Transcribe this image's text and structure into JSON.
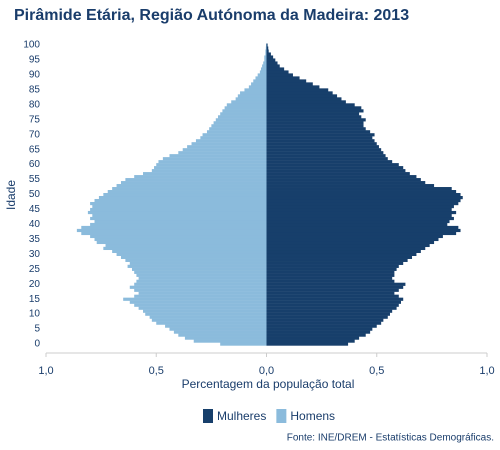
{
  "chart_data": {
    "type": "pyramid",
    "title": "Pirâmide Etária, Região Autónoma da Madeira: 2013",
    "x_label": "Percentagem da população total",
    "y_label": "Idade",
    "source": "Fonte: INE/DREM - Estatísticas Demográficas.",
    "categories": [
      0,
      null,
      null,
      null,
      null,
      5,
      null,
      null,
      null,
      null,
      10,
      null,
      null,
      null,
      null,
      15,
      null,
      null,
      null,
      null,
      20,
      null,
      null,
      null,
      null,
      25,
      null,
      null,
      null,
      null,
      30,
      null,
      null,
      null,
      null,
      35,
      null,
      null,
      null,
      null,
      40,
      null,
      null,
      null,
      null,
      45,
      null,
      null,
      null,
      null,
      50,
      null,
      null,
      null,
      null,
      55,
      null,
      null,
      null,
      null,
      60,
      null,
      null,
      null,
      null,
      65,
      null,
      null,
      null,
      null,
      70,
      null,
      null,
      null,
      null,
      75,
      null,
      null,
      null,
      null,
      80,
      null,
      null,
      null,
      null,
      85,
      null,
      null,
      null,
      null,
      90,
      null,
      null,
      null,
      null,
      95,
      null,
      null,
      null,
      null,
      100
    ],
    "xlim": [
      -1,
      1
    ],
    "xticks": [
      {
        "value": -1,
        "label": "1,0"
      },
      {
        "value": -0.5,
        "label": "0,5"
      },
      {
        "value": 0,
        "label": "0,0"
      },
      {
        "value": 0.5,
        "label": "0,5"
      },
      {
        "value": 1,
        "label": "1,0"
      }
    ],
    "series": [
      {
        "name": "Mulheres",
        "color": "#173f6b",
        "values": [
          0.37,
          0.4,
          0.42,
          0.45,
          0.47,
          0.48,
          0.5,
          0.52,
          0.53,
          0.55,
          0.56,
          0.57,
          0.59,
          0.6,
          0.61,
          0.62,
          0.6,
          0.58,
          0.6,
          0.62,
          0.63,
          0.58,
          0.57,
          0.58,
          0.58,
          0.59,
          0.6,
          0.62,
          0.64,
          0.66,
          0.68,
          0.7,
          0.72,
          0.74,
          0.76,
          0.78,
          0.8,
          0.86,
          0.88,
          0.87,
          0.82,
          0.83,
          0.85,
          0.84,
          0.86,
          0.84,
          0.85,
          0.87,
          0.88,
          0.89,
          0.88,
          0.86,
          0.84,
          0.76,
          0.72,
          0.7,
          0.68,
          0.65,
          0.63,
          0.62,
          0.6,
          0.57,
          0.55,
          0.54,
          0.53,
          0.52,
          0.51,
          0.5,
          0.49,
          0.48,
          0.49,
          0.47,
          0.45,
          0.44,
          0.44,
          0.45,
          0.43,
          0.42,
          0.44,
          0.43,
          0.4,
          0.36,
          0.34,
          0.32,
          0.3,
          0.28,
          0.24,
          0.21,
          0.18,
          0.15,
          0.12,
          0.1,
          0.08,
          0.06,
          0.05,
          0.04,
          0.03,
          0.02,
          0.01,
          0.008,
          0.005
        ]
      },
      {
        "name": "Homens",
        "color": "#8bbbdc",
        "values": [
          -0.21,
          -0.33,
          -0.37,
          -0.4,
          -0.42,
          -0.44,
          -0.46,
          -0.5,
          -0.52,
          -0.53,
          -0.55,
          -0.56,
          -0.58,
          -0.6,
          -0.62,
          -0.65,
          -0.6,
          -0.58,
          -0.6,
          -0.62,
          -0.6,
          -0.59,
          -0.58,
          -0.59,
          -0.6,
          -0.61,
          -0.63,
          -0.62,
          -0.64,
          -0.66,
          -0.68,
          -0.7,
          -0.74,
          -0.73,
          -0.77,
          -0.78,
          -0.8,
          -0.84,
          -0.86,
          -0.84,
          -0.8,
          -0.78,
          -0.8,
          -0.79,
          -0.81,
          -0.8,
          -0.79,
          -0.8,
          -0.78,
          -0.76,
          -0.74,
          -0.72,
          -0.7,
          -0.68,
          -0.66,
          -0.64,
          -0.6,
          -0.56,
          -0.52,
          -0.51,
          -0.5,
          -0.49,
          -0.47,
          -0.44,
          -0.4,
          -0.38,
          -0.36,
          -0.34,
          -0.32,
          -0.3,
          -0.29,
          -0.27,
          -0.26,
          -0.25,
          -0.24,
          -0.23,
          -0.22,
          -0.21,
          -0.2,
          -0.19,
          -0.18,
          -0.16,
          -0.14,
          -0.13,
          -0.12,
          -0.1,
          -0.08,
          -0.07,
          -0.06,
          -0.05,
          -0.04,
          -0.03,
          -0.025,
          -0.02,
          -0.015,
          -0.01,
          -0.01,
          -0.005,
          -0.005,
          -0.003,
          -0.002
        ]
      }
    ]
  }
}
